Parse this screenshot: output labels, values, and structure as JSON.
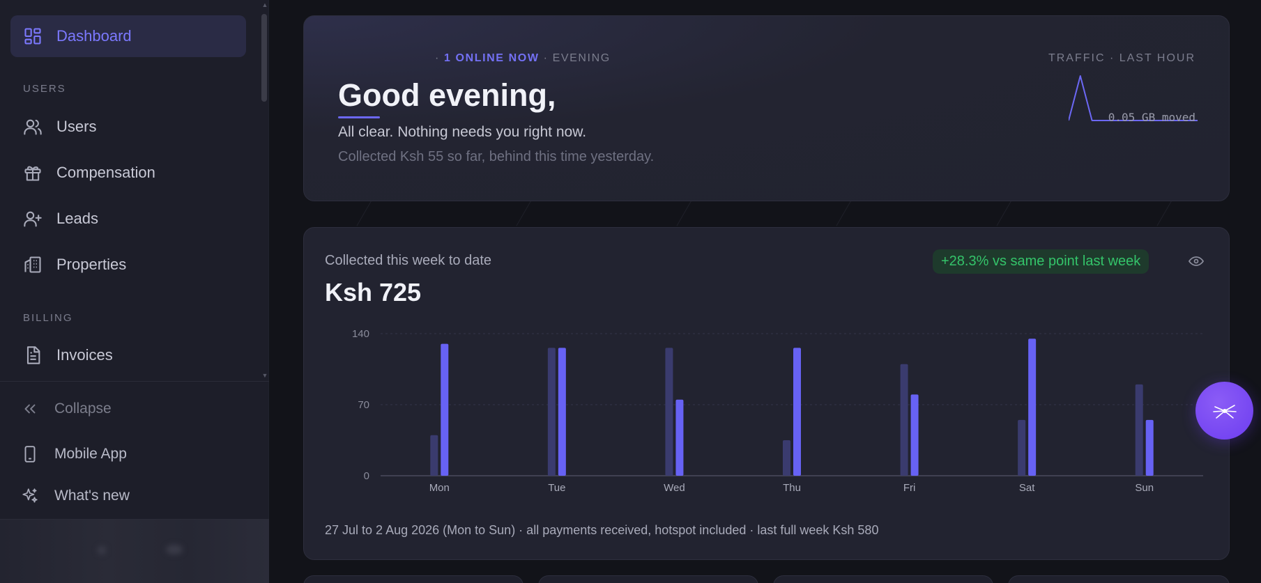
{
  "sidebar": {
    "items": [
      {
        "label": "Dashboard",
        "icon": "dashboard-grid-icon",
        "active": true
      },
      {
        "label": "Users",
        "icon": "users-icon"
      },
      {
        "label": "Compensation",
        "icon": "gift-icon"
      },
      {
        "label": "Leads",
        "icon": "user-plus-icon"
      },
      {
        "label": "Properties",
        "icon": "building-icon"
      },
      {
        "label": "Invoices",
        "icon": "file-text-icon"
      }
    ],
    "sections": {
      "users": "USERS",
      "billing": "BILLING"
    },
    "footer": {
      "collapse": "Collapse",
      "mobile_app": "Mobile App",
      "whats_new": "What's new"
    }
  },
  "hero": {
    "online": "1 ONLINE NOW",
    "period": "EVENING",
    "title": "Good evening,",
    "line1": "All clear. Nothing needs you right now.",
    "line2": "Collected Ksh 55 so far, behind this time yesterday.",
    "traffic_label": "TRAFFIC · LAST HOUR",
    "traffic_moved": "0.05 GB moved",
    "traffic_series": [
      0,
      95,
      0,
      0,
      0,
      0,
      0,
      0,
      0,
      0,
      0,
      0
    ]
  },
  "week_card": {
    "title": "Collected this week to date",
    "value": "Ksh 725",
    "badge": "+28.3% vs same point last week",
    "footnote": "27 Jul to 2 Aug 2026 (Mon to Sun) · all payments received, hotspot included · last full week Ksh 580"
  },
  "chart_data": {
    "type": "bar",
    "categories": [
      "Mon",
      "Tue",
      "Wed",
      "Thu",
      "Fri",
      "Sat",
      "Sun"
    ],
    "series": [
      {
        "values": [
          40,
          126,
          126,
          35,
          110,
          55,
          90
        ]
      },
      {
        "values": [
          130,
          126,
          75,
          126,
          80,
          135,
          55
        ]
      }
    ],
    "yticks": [
      0,
      70,
      140
    ],
    "ylim": [
      0,
      140
    ],
    "grid": true
  },
  "colors": {
    "accent": "#6c68f5",
    "prev_week_bar": "#3a3b6e",
    "this_week_bar": "#6762f4",
    "positive": "#34c46a",
    "fab": "#7c4dff"
  }
}
